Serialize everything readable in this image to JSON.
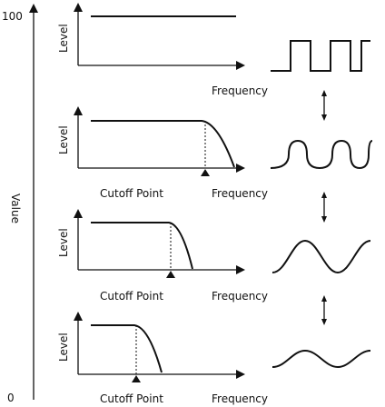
{
  "value_axis": {
    "max": "100",
    "min": "0",
    "label": "Value"
  },
  "panels": [
    {
      "y_label": "Level",
      "x_label": "Frequency"
    },
    {
      "y_label": "Level",
      "x_label": "Frequency",
      "cutoff_label": "Cutoff Point"
    },
    {
      "y_label": "Level",
      "x_label": "Frequency",
      "cutoff_label": "Cutoff Point"
    },
    {
      "y_label": "Level",
      "x_label": "Frequency",
      "cutoff_label": "Cutoff Point"
    }
  ]
}
